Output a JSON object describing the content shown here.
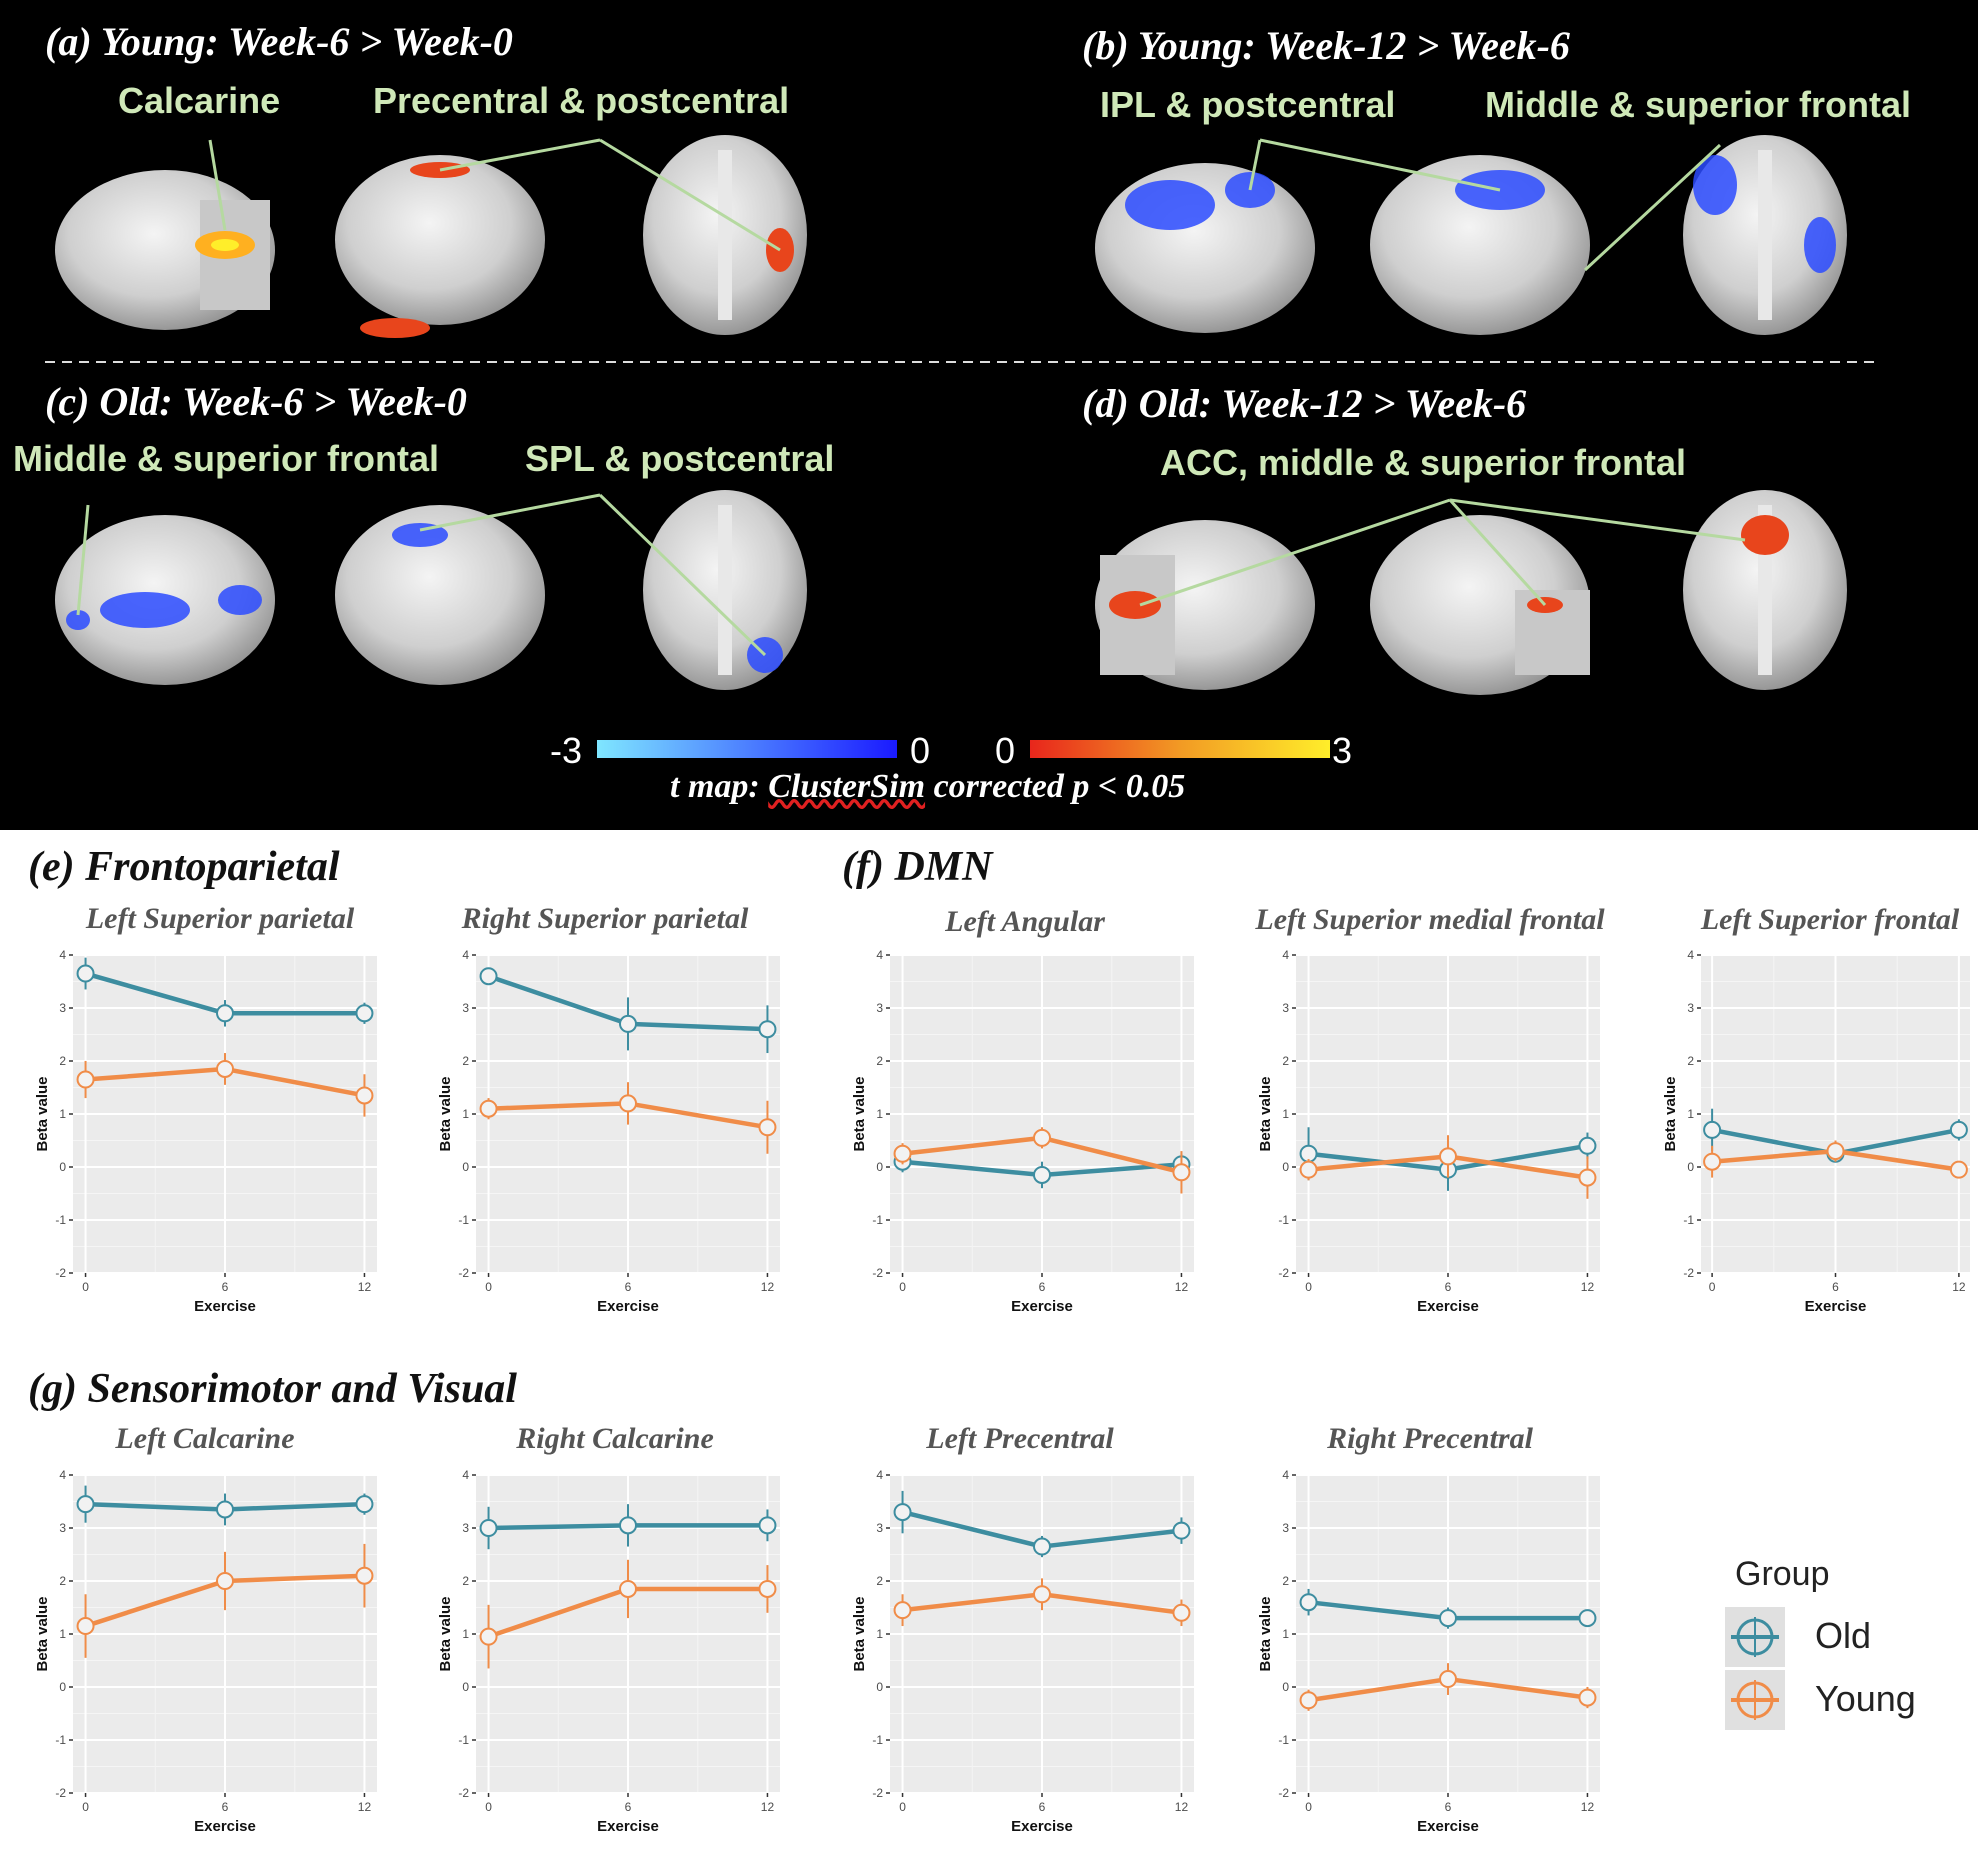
{
  "panels_top": {
    "a": {
      "title": "(a) Young: Week-6 > Week-0",
      "labels": [
        "Calcarine",
        "Precentral & postcentral"
      ]
    },
    "b": {
      "title": "(b) Young: Week-12 > Week-6",
      "labels": [
        "IPL & postcentral",
        "Middle & superior frontal"
      ]
    },
    "c": {
      "title": "(c) Old: Week-6 > Week-0",
      "labels": [
        "Middle & superior frontal",
        "SPL & postcentral"
      ]
    },
    "d": {
      "title": "(d) Old: Week-12 > Week-6",
      "labels": [
        "ACC, middle & superior frontal"
      ]
    }
  },
  "colorbar": {
    "neg_min": "-3",
    "neg_max": "0",
    "pos_min": "0",
    "pos_max": "3",
    "caption_prefix": "t map:",
    "caption_method": "ClusterSim",
    "caption_suffix": "corrected p < 0.05",
    "neg_colors": [
      "#7fe6ff",
      "#1a1aff"
    ],
    "pos_colors": [
      "#e8261c",
      "#ffee2a"
    ]
  },
  "section_labels": {
    "e": "(e) Frontoparietal",
    "f": "(f) DMN",
    "g": "(g) Sensorimotor and Visual"
  },
  "legend": {
    "title": "Group",
    "items": [
      {
        "name": "Old",
        "color": "#3d8da0"
      },
      {
        "name": "Young",
        "color": "#f08c48"
      }
    ]
  },
  "colors": {
    "old": "#3d8da0",
    "young": "#f08c48",
    "panel_bg": "#ebebeb",
    "grid": "#ffffff",
    "brain_panel_bg": "#000000",
    "label_green": "#cfe8b8"
  },
  "chart_data": [
    {
      "type": "line",
      "title": "Left Superior parietal",
      "xlabel": "Exercise",
      "ylabel": "Beta value",
      "x": [
        0,
        6,
        12
      ],
      "ylim": [
        -2,
        4
      ],
      "yticks": [
        4,
        3,
        2,
        1,
        0,
        -1,
        -2
      ],
      "series": [
        {
          "name": "Old",
          "values": [
            3.65,
            2.9,
            2.9
          ],
          "err": [
            0.3,
            0.25,
            0.2
          ]
        },
        {
          "name": "Young",
          "values": [
            1.65,
            1.85,
            1.35
          ],
          "err": [
            0.35,
            0.3,
            0.4
          ]
        }
      ]
    },
    {
      "type": "line",
      "title": "Right Superior parietal",
      "xlabel": "Exercise",
      "ylabel": "Beta value",
      "x": [
        0,
        6,
        12
      ],
      "ylim": [
        -2,
        4
      ],
      "yticks": [
        4,
        3,
        2,
        1,
        0,
        -1,
        -2
      ],
      "series": [
        {
          "name": "Old",
          "values": [
            3.6,
            2.7,
            2.6
          ],
          "err": [
            0.05,
            0.5,
            0.45
          ]
        },
        {
          "name": "Young",
          "values": [
            1.1,
            1.2,
            0.75
          ],
          "err": [
            0.2,
            0.4,
            0.5
          ]
        }
      ]
    },
    {
      "type": "line",
      "title": "Left Angular",
      "xlabel": "Exercise",
      "ylabel": "Beta value",
      "x": [
        0,
        6,
        12
      ],
      "ylim": [
        -2,
        4
      ],
      "yticks": [
        4,
        3,
        2,
        1,
        0,
        -1,
        -2
      ],
      "series": [
        {
          "name": "Old",
          "values": [
            0.1,
            -0.15,
            0.05
          ],
          "err": [
            0.2,
            0.25,
            0.2
          ]
        },
        {
          "name": "Young",
          "values": [
            0.25,
            0.55,
            -0.1
          ],
          "err": [
            0.2,
            0.2,
            0.4
          ]
        }
      ]
    },
    {
      "type": "line",
      "title": "Left Superior medial frontal",
      "xlabel": "Exercise",
      "ylabel": "Beta value",
      "x": [
        0,
        6,
        12
      ],
      "ylim": [
        -2,
        4
      ],
      "yticks": [
        4,
        3,
        2,
        1,
        0,
        -1,
        -2
      ],
      "series": [
        {
          "name": "Old",
          "values": [
            0.25,
            -0.05,
            0.4
          ],
          "err": [
            0.5,
            0.4,
            0.25
          ]
        },
        {
          "name": "Young",
          "values": [
            -0.05,
            0.2,
            -0.2
          ],
          "err": [
            0.2,
            0.4,
            0.4
          ]
        }
      ]
    },
    {
      "type": "line",
      "title": "Left Superior frontal",
      "xlabel": "Exercise",
      "ylabel": "Beta value",
      "x": [
        0,
        6,
        12
      ],
      "ylim": [
        -2,
        4
      ],
      "yticks": [
        4,
        3,
        2,
        1,
        0,
        -1,
        -2
      ],
      "series": [
        {
          "name": "Old",
          "values": [
            0.7,
            0.25,
            0.7
          ],
          "err": [
            0.4,
            0.15,
            0.2
          ]
        },
        {
          "name": "Young",
          "values": [
            0.1,
            0.3,
            -0.05
          ],
          "err": [
            0.3,
            0.2,
            0.15
          ]
        }
      ]
    },
    {
      "type": "line",
      "title": "Left Calcarine",
      "xlabel": "Exercise",
      "ylabel": "Beta value",
      "x": [
        0,
        6,
        12
      ],
      "ylim": [
        -2,
        4
      ],
      "yticks": [
        4,
        3,
        2,
        1,
        0,
        -1,
        -2
      ],
      "series": [
        {
          "name": "Old",
          "values": [
            3.45,
            3.35,
            3.45
          ],
          "err": [
            0.35,
            0.3,
            0.2
          ]
        },
        {
          "name": "Young",
          "values": [
            1.15,
            2.0,
            2.1
          ],
          "err": [
            0.6,
            0.55,
            0.6
          ]
        }
      ]
    },
    {
      "type": "line",
      "title": "Right Calcarine",
      "xlabel": "Exercise",
      "ylabel": "Beta value",
      "x": [
        0,
        6,
        12
      ],
      "ylim": [
        -2,
        4
      ],
      "yticks": [
        4,
        3,
        2,
        1,
        0,
        -1,
        -2
      ],
      "series": [
        {
          "name": "Old",
          "values": [
            3.0,
            3.05,
            3.05
          ],
          "err": [
            0.4,
            0.4,
            0.3
          ]
        },
        {
          "name": "Young",
          "values": [
            0.95,
            1.85,
            1.85
          ],
          "err": [
            0.6,
            0.55,
            0.45
          ]
        }
      ]
    },
    {
      "type": "line",
      "title": "Left Precentral",
      "xlabel": "Exercise",
      "ylabel": "Beta value",
      "x": [
        0,
        6,
        12
      ],
      "ylim": [
        -2,
        4
      ],
      "yticks": [
        4,
        3,
        2,
        1,
        0,
        -1,
        -2
      ],
      "series": [
        {
          "name": "Old",
          "values": [
            3.3,
            2.65,
            2.95
          ],
          "err": [
            0.4,
            0.2,
            0.25
          ]
        },
        {
          "name": "Young",
          "values": [
            1.45,
            1.75,
            1.4
          ],
          "err": [
            0.3,
            0.3,
            0.25
          ]
        }
      ]
    },
    {
      "type": "line",
      "title": "Right Precentral",
      "xlabel": "Exercise",
      "ylabel": "Beta value",
      "x": [
        0,
        6,
        12
      ],
      "ylim": [
        -2,
        4
      ],
      "yticks": [
        4,
        3,
        2,
        1,
        0,
        -1,
        -2
      ],
      "series": [
        {
          "name": "Old",
          "values": [
            1.6,
            1.3,
            1.3
          ],
          "err": [
            0.25,
            0.2,
            0.15
          ]
        },
        {
          "name": "Young",
          "values": [
            -0.25,
            0.15,
            -0.2
          ],
          "err": [
            0.2,
            0.3,
            0.2
          ]
        }
      ]
    }
  ]
}
